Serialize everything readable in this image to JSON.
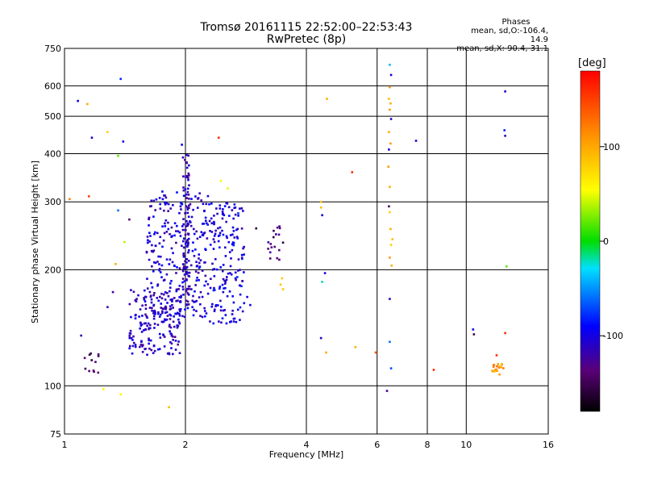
{
  "chart_data": {
    "type": "scatter",
    "title": "Tromsø 20161115 22:52:00–22:53:43",
    "subtitle": "RwPretec (8p)",
    "xlabel": "Frequency [MHz]",
    "ylabel": "Stationary phase Virtual Height [km]",
    "x_scale": "log",
    "y_scale": "log",
    "xlim": [
      1,
      16
    ],
    "ylim": [
      75,
      750
    ],
    "x_ticks": [
      1,
      2,
      4,
      6,
      8,
      10,
      16
    ],
    "y_ticks": [
      75,
      100,
      200,
      300,
      400,
      500,
      600,
      750
    ],
    "grid": true,
    "colorbar": {
      "label": "[deg]",
      "range": [
        -180,
        180
      ],
      "ticks": [
        100,
        0,
        -100
      ]
    },
    "stats": {
      "heading": "Phases",
      "line1": "mean, sd,O:-106.4, 14.9",
      "line2": "mean, sd,X:  90.4, 31.1"
    },
    "point_groups": [
      {
        "name": "o-trace-low",
        "phase": -110,
        "count": 180,
        "x": [
          1.45,
          1.95
        ],
        "y": [
          120,
          180
        ]
      },
      {
        "name": "o-trace-main",
        "phase": -105,
        "count": 260,
        "x": [
          1.6,
          2.3
        ],
        "y": [
          150,
          320
        ]
      },
      {
        "name": "o-trace-upper",
        "phase": -100,
        "count": 160,
        "x": [
          2.3,
          2.8
        ],
        "y": [
          145,
          300
        ]
      },
      {
        "name": "o-column-2mhz",
        "phase": -115,
        "count": 90,
        "x": [
          1.97,
          2.05
        ],
        "y": [
          160,
          400
        ]
      },
      {
        "name": "dark-cluster",
        "phase": -140,
        "count": 18,
        "x": [
          3.2,
          3.5
        ],
        "y": [
          210,
          260
        ]
      },
      {
        "name": "x-cluster-12mhz",
        "phase": 110,
        "count": 18,
        "x": [
          11.6,
          12.5
        ],
        "y": [
          109,
          114
        ]
      },
      {
        "name": "left-low-cluster",
        "phase": -150,
        "count": 12,
        "x": [
          1.12,
          1.22
        ],
        "y": [
          108,
          122
        ]
      },
      {
        "name": "misc",
        "phase": 0,
        "count": 0,
        "x": [
          1,
          16
        ],
        "y": [
          75,
          750
        ]
      }
    ],
    "scatter_points": [
      {
        "x": 1.08,
        "y": 548,
        "p": -95
      },
      {
        "x": 1.14,
        "y": 538,
        "p": 100
      },
      {
        "x": 1.17,
        "y": 440,
        "p": -110
      },
      {
        "x": 1.28,
        "y": 455,
        "p": 80
      },
      {
        "x": 1.36,
        "y": 395,
        "p": 20
      },
      {
        "x": 1.38,
        "y": 625,
        "p": -80
      },
      {
        "x": 1.4,
        "y": 430,
        "p": -100
      },
      {
        "x": 1.03,
        "y": 305,
        "p": 120
      },
      {
        "x": 1.15,
        "y": 310,
        "p": 150
      },
      {
        "x": 1.36,
        "y": 285,
        "p": -60
      },
      {
        "x": 1.45,
        "y": 270,
        "p": -140
      },
      {
        "x": 1.41,
        "y": 236,
        "p": 40
      },
      {
        "x": 1.34,
        "y": 207,
        "p": 100
      },
      {
        "x": 1.28,
        "y": 160,
        "p": -120
      },
      {
        "x": 1.32,
        "y": 175,
        "p": -120
      },
      {
        "x": 1.1,
        "y": 135,
        "p": -120
      },
      {
        "x": 1.25,
        "y": 98,
        "p": 60
      },
      {
        "x": 1.38,
        "y": 95,
        "p": 60
      },
      {
        "x": 1.82,
        "y": 88,
        "p": 90
      },
      {
        "x": 1.96,
        "y": 422,
        "p": -90
      },
      {
        "x": 2.42,
        "y": 440,
        "p": 160
      },
      {
        "x": 2.45,
        "y": 340,
        "p": 60
      },
      {
        "x": 2.55,
        "y": 325,
        "p": 50
      },
      {
        "x": 3.0,
        "y": 256,
        "p": -160
      },
      {
        "x": 3.45,
        "y": 183,
        "p": 85
      },
      {
        "x": 3.5,
        "y": 178,
        "p": 85
      },
      {
        "x": 3.48,
        "y": 190,
        "p": 85
      },
      {
        "x": 4.35,
        "y": 300,
        "p": 90
      },
      {
        "x": 4.35,
        "y": 290,
        "p": 90
      },
      {
        "x": 4.38,
        "y": 277,
        "p": -100
      },
      {
        "x": 4.38,
        "y": 186,
        "p": -20
      },
      {
        "x": 4.45,
        "y": 196,
        "p": -100
      },
      {
        "x": 4.35,
        "y": 133,
        "p": -110
      },
      {
        "x": 4.48,
        "y": 122,
        "p": 100
      },
      {
        "x": 4.5,
        "y": 555,
        "p": 100
      },
      {
        "x": 5.2,
        "y": 358,
        "p": 160
      },
      {
        "x": 5.3,
        "y": 126,
        "p": 100
      },
      {
        "x": 5.95,
        "y": 122,
        "p": 140
      },
      {
        "x": 6.45,
        "y": 680,
        "p": -40
      },
      {
        "x": 6.5,
        "y": 640,
        "p": -100
      },
      {
        "x": 6.45,
        "y": 595,
        "p": 110
      },
      {
        "x": 6.42,
        "y": 555,
        "p": 90
      },
      {
        "x": 6.48,
        "y": 540,
        "p": 100
      },
      {
        "x": 6.45,
        "y": 520,
        "p": 110
      },
      {
        "x": 6.5,
        "y": 492,
        "p": -110
      },
      {
        "x": 6.42,
        "y": 455,
        "p": 100
      },
      {
        "x": 6.48,
        "y": 425,
        "p": 110
      },
      {
        "x": 6.42,
        "y": 410,
        "p": -110
      },
      {
        "x": 6.4,
        "y": 370,
        "p": 110
      },
      {
        "x": 6.45,
        "y": 328,
        "p": 100
      },
      {
        "x": 6.42,
        "y": 292,
        "p": -150
      },
      {
        "x": 6.45,
        "y": 282,
        "p": 80
      },
      {
        "x": 6.48,
        "y": 255,
        "p": 100
      },
      {
        "x": 6.55,
        "y": 240,
        "p": 90
      },
      {
        "x": 6.5,
        "y": 232,
        "p": 80
      },
      {
        "x": 6.45,
        "y": 215,
        "p": 110
      },
      {
        "x": 6.52,
        "y": 205,
        "p": 100
      },
      {
        "x": 6.45,
        "y": 168,
        "p": -110
      },
      {
        "x": 6.45,
        "y": 130,
        "p": -60
      },
      {
        "x": 6.5,
        "y": 111,
        "p": -70
      },
      {
        "x": 6.35,
        "y": 97,
        "p": -130
      },
      {
        "x": 7.5,
        "y": 432,
        "p": -100
      },
      {
        "x": 8.3,
        "y": 110,
        "p": 160
      },
      {
        "x": 10.4,
        "y": 140,
        "p": -100
      },
      {
        "x": 10.45,
        "y": 136,
        "p": -150
      },
      {
        "x": 12.5,
        "y": 580,
        "p": -110
      },
      {
        "x": 12.45,
        "y": 460,
        "p": -80
      },
      {
        "x": 12.5,
        "y": 445,
        "p": -110
      },
      {
        "x": 12.6,
        "y": 204,
        "p": 20
      },
      {
        "x": 12.5,
        "y": 137,
        "p": 160
      },
      {
        "x": 11.9,
        "y": 120,
        "p": 160
      },
      {
        "x": 12.1,
        "y": 107,
        "p": 110
      },
      {
        "x": 2.85,
        "y": 170,
        "p": -100
      },
      {
        "x": 2.9,
        "y": 162,
        "p": -100
      },
      {
        "x": 2.1,
        "y": 165,
        "p": -100
      }
    ]
  }
}
